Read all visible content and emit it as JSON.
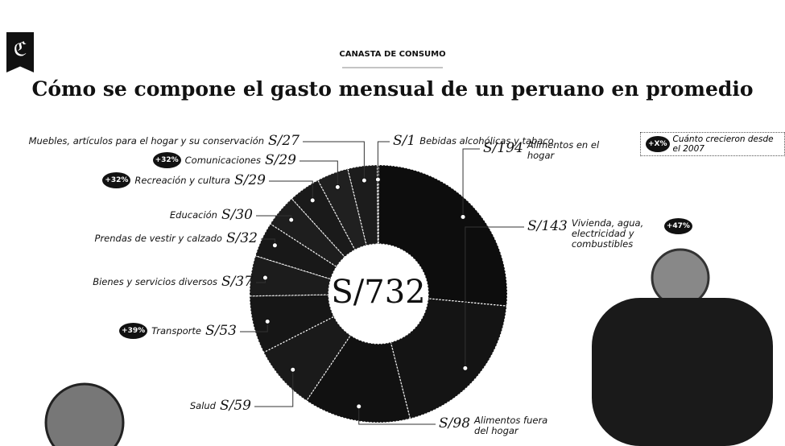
{
  "brand_mark": "ℭ",
  "chart_data": {
    "type": "donut",
    "subtitle": "CANASTA DE CONSUMO",
    "title": "Cómo se compone el gasto mensual de un peruano en promedio",
    "center_label": "S/732",
    "legend": {
      "badge": "+X%",
      "label": "Cuánto crecieron desde el 2007"
    },
    "categories": [
      "Alimentos en el hogar",
      "Vivienda, agua, electricidad y combustibles",
      "Alimentos fuera del hogar",
      "Salud",
      "Transporte",
      "Bienes y servicios diversos",
      "Prendas de vestir y calzado",
      "Educación",
      "Recreación y cultura",
      "Comunicaciones",
      "Muebles, artículos para el hogar y su conservación",
      "Bebidas alcohólicas y tabaco"
    ],
    "values": [
      194,
      143,
      98,
      59,
      53,
      37,
      32,
      30,
      29,
      29,
      27,
      1
    ],
    "value_labels": [
      "S/194",
      "S/143",
      "S/98",
      "S/59",
      "S/53",
      "S/37",
      "S/32",
      "S/30",
      "S/29",
      "S/29",
      "S/27",
      "S/1"
    ],
    "badges": [
      null,
      "+47%",
      null,
      null,
      "+39%",
      null,
      null,
      null,
      "+32%",
      "+32%",
      null,
      null
    ],
    "colors": [
      "#0d0d0d",
      "#141414",
      "#111111",
      "#1a1a1a",
      "#161616",
      "#1c1c1c",
      "#181818",
      "#1e1e1e",
      "#1a1a1a",
      "#202020",
      "#1c1c1c",
      "#222222"
    ]
  }
}
